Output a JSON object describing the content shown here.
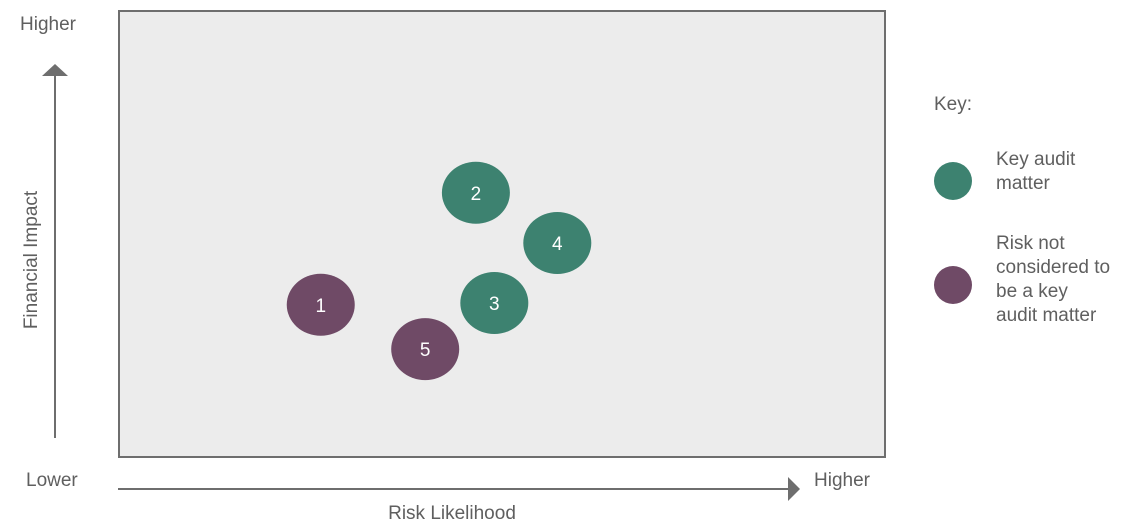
{
  "chart_data": {
    "type": "scatter",
    "xlabel": "Risk Likelihood",
    "ylabel": "Financial Impact",
    "x_low_label": "Lower",
    "x_high_label": "Higher",
    "y_high_label": "Higher",
    "xlim": [
      0,
      100
    ],
    "ylim": [
      0,
      100
    ],
    "grid": false,
    "legend_position": "right",
    "series": [
      {
        "name": "Key audit matter",
        "color": "#3d8270",
        "points": [
          {
            "label": "2",
            "x": 46.6,
            "y": 59.2
          },
          {
            "label": "4",
            "x": 57.2,
            "y": 48.0
          },
          {
            "label": "3",
            "x": 49.0,
            "y": 34.6
          }
        ]
      },
      {
        "name": "Risk not considered to be a key audit matter",
        "color": "#6f4a66",
        "points": [
          {
            "label": "1",
            "x": 26.4,
            "y": 34.2
          },
          {
            "label": "5",
            "x": 40.0,
            "y": 24.3
          }
        ]
      }
    ]
  },
  "legend": {
    "title": "Key:",
    "items": [
      {
        "lines": [
          "Key audit",
          "matter"
        ],
        "color": "#3d8270"
      },
      {
        "lines": [
          "Risk not",
          "considered to",
          "be a key",
          "audit matter"
        ],
        "color": "#6f4a66"
      }
    ]
  },
  "colors": {
    "plot_background": "#ececec",
    "plot_border": "#6e6e6e",
    "axis_arrow": "#6e6e6e",
    "marker_text": "#ffffff"
  }
}
